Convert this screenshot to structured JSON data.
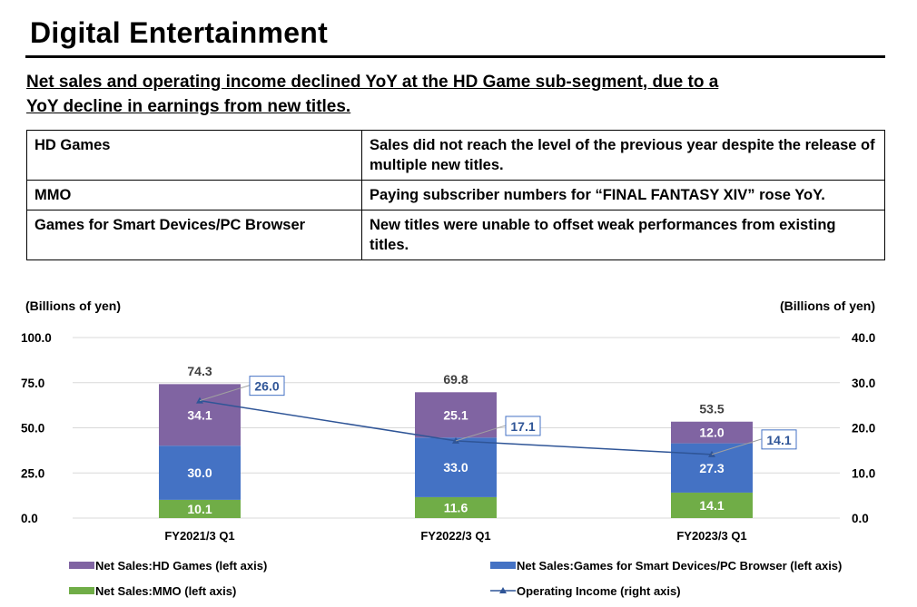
{
  "title": "Digital Entertainment",
  "subtitle": "Net sales and operating income declined YoY at the HD Game sub-segment, due to a YoY decline in earnings from new titles.",
  "table": [
    {
      "segment": "HD Games",
      "comment": "Sales did not reach the level of the previous year despite the release of multiple new titles."
    },
    {
      "segment": "MMO",
      "comment": "Paying subscriber numbers for “FINAL FANTASY XIV” rose YoY."
    },
    {
      "segment": "Games for Smart Devices/PC Browser",
      "comment": "New titles were unable to offset weak performances from existing titles."
    }
  ],
  "chart_data": {
    "type": "bar",
    "stacked": true,
    "categories": [
      "FY2021/3 Q1",
      "FY2022/3 Q1",
      "FY2023/3 Q1"
    ],
    "ylabel": "(Billions of yen)",
    "y2label": "(Billions of yen)",
    "ylim": [
      0,
      100
    ],
    "y2lim": [
      0,
      40
    ],
    "yticks": [
      "0.0",
      "25.0",
      "50.0",
      "75.0",
      "100.0"
    ],
    "y2ticks": [
      "0.0",
      "10.0",
      "20.0",
      "30.0",
      "40.0"
    ],
    "totals": [
      74.3,
      69.8,
      53.5
    ],
    "series": [
      {
        "name": "Net Sales:MMO (left axis)",
        "values": [
          10.1,
          11.6,
          14.1
        ],
        "color": "#70ad47"
      },
      {
        "name": "Net Sales:Games for Smart Devices/PC Browser (left axis)",
        "values": [
          30.0,
          33.0,
          27.3
        ],
        "color": "#4472c4"
      },
      {
        "name": "Net Sales:HD Games (left axis)",
        "values": [
          34.1,
          25.1,
          12.0
        ],
        "color": "#8064a2"
      },
      {
        "name": "Operating Income (right axis)",
        "type": "line",
        "values": [
          26.0,
          17.1,
          14.1
        ],
        "color": "#2f5597"
      }
    ],
    "grid": true,
    "legend": "bottom"
  }
}
